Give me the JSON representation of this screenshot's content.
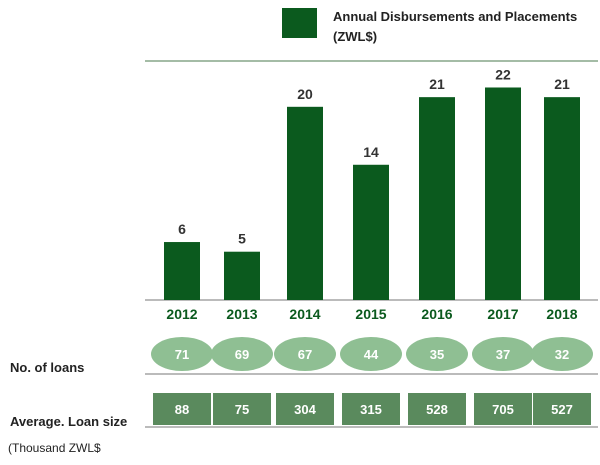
{
  "chart_data": {
    "type": "bar",
    "legend": {
      "line1": "Annual Disbursements and Placements",
      "line2": "(ZWL$)"
    },
    "categories": [
      "2012",
      "2013",
      "2014",
      "2015",
      "2016",
      "2017",
      "2018"
    ],
    "series": [
      {
        "name": "Annual Disbursements and Placements (ZWL$)",
        "values": [
          6,
          5,
          20,
          14,
          21,
          22,
          21
        ],
        "data_labels": [
          "6",
          "5",
          "20",
          "14",
          "21",
          "22",
          "21"
        ],
        "color": "#0b5a1e"
      }
    ],
    "ylim": [
      0,
      23.5
    ],
    "grid": false,
    "rows": {
      "loans": {
        "label": "No. of loans",
        "values": [
          "71",
          "69",
          "67",
          "44",
          "35",
          "37",
          "32"
        ]
      },
      "loan_size": {
        "label": "Average. Loan size",
        "sublabel": "(Thousand ZWL$",
        "values": [
          "88",
          "75",
          "304",
          "315",
          "528",
          "705",
          "527"
        ]
      }
    },
    "colors": {
      "bar": "#0b5a1e",
      "year_text": "#0b5a1e",
      "ellipse": "#8fbf93",
      "box": "#5a8a5d",
      "axis": "#777777"
    }
  }
}
